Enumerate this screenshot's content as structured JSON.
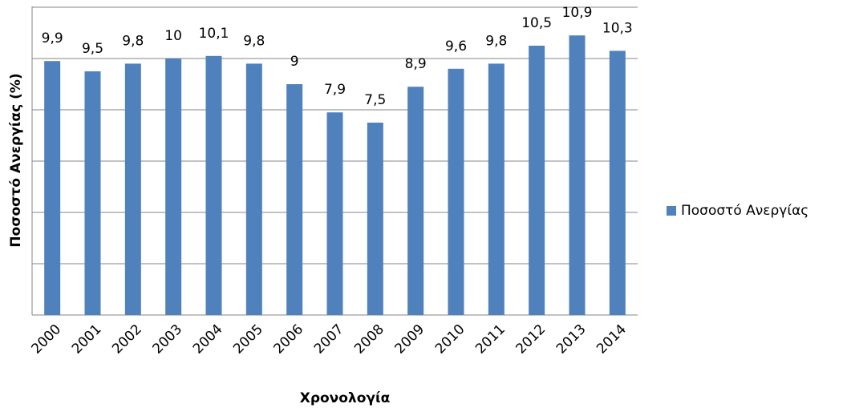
{
  "chart_data": {
    "type": "bar",
    "categories": [
      "2000",
      "2001",
      "2002",
      "2003",
      "2004",
      "2005",
      "2006",
      "2007",
      "2008",
      "2009",
      "2010",
      "2011",
      "2012",
      "2013",
      "2014"
    ],
    "series": [
      {
        "name": "Ποσοστό Ανεργίας",
        "color": "#4f81bd",
        "values": [
          9.9,
          9.5,
          9.8,
          10,
          10.1,
          9.8,
          9,
          7.9,
          7.5,
          8.9,
          9.6,
          9.8,
          10.5,
          10.9,
          10.3
        ],
        "value_labels": [
          "9,9",
          "9,5",
          "9,8",
          "10",
          "10,1",
          "9,8",
          "9",
          "7,9",
          "7,5",
          "8,9",
          "9,6",
          "9,8",
          "10,5",
          "10,9",
          "10,3"
        ]
      }
    ],
    "xlabel": "Χρονολογία",
    "ylabel": "Ποσοστό Ανεργίας (%)",
    "ylim": [
      0,
      12
    ],
    "yticks": [
      0,
      2,
      4,
      6,
      8,
      10,
      12
    ],
    "grid": true,
    "legend": "right"
  }
}
